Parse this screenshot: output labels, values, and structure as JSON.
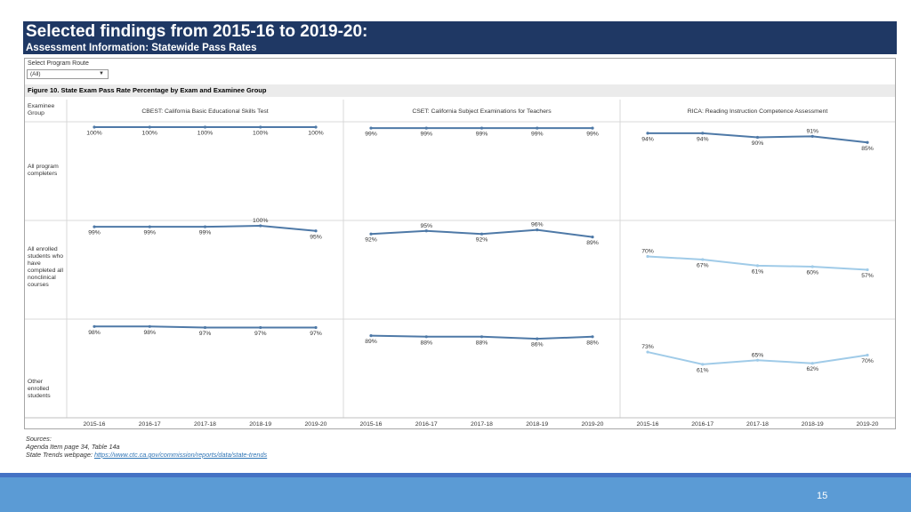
{
  "header": {
    "title": "Selected findings from 2015-16 to 2019-20:",
    "subtitle": "Assessment Information: Statewide Pass Rates"
  },
  "filter": {
    "label": "Select Program Route",
    "value": "(All)"
  },
  "figure_title": "Figure 10. State Exam Pass Rate Percentage by Exam and Examinee Group",
  "chart_data": {
    "type": "line",
    "row_header": "Examinee Group",
    "x": [
      "2015-16",
      "2016-17",
      "2017-18",
      "2018-19",
      "2019-20"
    ],
    "ylim": [
      0,
      100
    ],
    "exams": [
      "CBEST: California Basic Educational Skills Test",
      "CSET: California Subject Examinations for Teachers",
      "RICA: Reading Instruction Competence Assessment"
    ],
    "groups": [
      "All program completers",
      "All enrolled students who have completed all nonclinical courses",
      "Other enrolled students"
    ],
    "values": [
      [
        [
          100,
          100,
          100,
          100,
          100
        ],
        [
          99,
          99,
          99,
          99,
          99
        ],
        [
          94,
          94,
          90,
          91,
          85
        ]
      ],
      [
        [
          99,
          99,
          99,
          100,
          95
        ],
        [
          92,
          95,
          92,
          96,
          89
        ],
        [
          70,
          67,
          61,
          60,
          57
        ]
      ],
      [
        [
          98,
          98,
          97,
          97,
          97
        ],
        [
          89,
          88,
          88,
          86,
          88
        ],
        [
          73,
          61,
          65,
          62,
          70
        ]
      ]
    ],
    "series_colors": [
      "#4e79a7",
      "#4e79a7",
      "#a0cbe8"
    ]
  },
  "sources": {
    "heading": "Sources:",
    "line1": "Agenda Item page 34, Table 14a",
    "line2_prefix": "State Trends webpage: ",
    "link": "https://www.ctc.ca.gov/commission/reports/data/state-trends"
  },
  "page_number": "15"
}
